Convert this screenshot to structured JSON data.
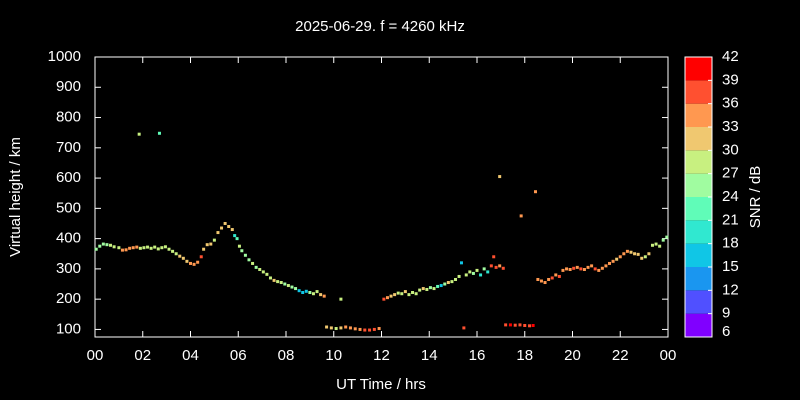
{
  "chart_data": {
    "type": "scatter",
    "title": "2025-06-29. f = 4260 kHz",
    "xlabel": "UT Time / hrs",
    "ylabel": "Virtual height / km",
    "colorbar_label": "SNR / dB",
    "xlim": [
      0,
      24
    ],
    "xticks": [
      {
        "value": 0,
        "label": "00"
      },
      {
        "value": 2,
        "label": "02"
      },
      {
        "value": 4,
        "label": "04"
      },
      {
        "value": 6,
        "label": "06"
      },
      {
        "value": 8,
        "label": "08"
      },
      10,
      12,
      14,
      16,
      18,
      20,
      22,
      {
        "value": 24,
        "label": "00"
      }
    ],
    "ylim": [
      75,
      1000
    ],
    "yticks": [
      100,
      200,
      300,
      400,
      500,
      600,
      700,
      800,
      900,
      1000
    ],
    "clim": [
      6,
      42
    ],
    "cticks": [
      6,
      9,
      12,
      15,
      18,
      21,
      24,
      27,
      30,
      33,
      36,
      39,
      42
    ],
    "colors": [
      "#8000ff",
      "#5050ff",
      "#1a96f0",
      "#10c6e6",
      "#30e8d0",
      "#60fcb8",
      "#a0fca0",
      "#c8f080",
      "#f0c870",
      "#ff9850",
      "#ff5030",
      "#ff0000"
    ],
    "x": [
      0.05,
      0.2,
      0.35,
      0.5,
      0.65,
      0.8,
      1.0,
      1.15,
      1.3,
      1.45,
      1.6,
      1.75,
      1.9,
      2.05,
      2.2,
      2.35,
      2.5,
      2.65,
      2.8,
      2.95,
      3.1,
      3.25,
      3.4,
      3.55,
      3.7,
      3.85,
      4.0,
      4.15,
      4.3,
      4.45,
      4.55,
      4.7,
      4.85,
      5.0,
      5.15,
      5.3,
      5.45,
      5.6,
      5.75,
      5.85,
      5.95,
      6.05,
      6.15,
      6.3,
      6.45,
      6.6,
      6.75,
      6.9,
      7.05,
      7.2,
      7.35,
      7.5,
      7.65,
      7.8,
      7.95,
      8.1,
      8.25,
      8.4,
      8.55,
      8.7,
      8.85,
      9.0,
      9.15,
      9.3,
      9.45,
      9.6,
      10.3,
      9.7,
      9.9,
      10.1,
      10.3,
      10.5,
      10.7,
      10.9,
      11.1,
      11.3,
      11.5,
      11.7,
      11.9,
      12.1,
      12.25,
      12.4,
      12.55,
      12.7,
      12.85,
      13.0,
      13.15,
      13.3,
      13.45,
      13.6,
      13.75,
      13.9,
      14.05,
      14.2,
      14.35,
      14.5,
      14.65,
      14.8,
      14.95,
      15.1,
      15.25,
      15.35,
      15.45,
      15.55,
      15.7,
      15.85,
      16.0,
      16.15,
      16.3,
      16.45,
      16.6,
      16.7,
      16.8,
      16.95,
      16.95,
      17.1,
      17.2,
      17.4,
      17.6,
      17.8,
      17.85,
      18.0,
      18.2,
      18.35,
      18.45,
      18.55,
      18.7,
      18.85,
      19.0,
      19.15,
      19.3,
      19.45,
      19.6,
      19.75,
      19.9,
      20.05,
      20.2,
      20.35,
      20.5,
      20.65,
      20.8,
      20.95,
      21.1,
      21.25,
      21.4,
      21.55,
      21.7,
      21.85,
      22.0,
      22.15,
      22.3,
      22.45,
      22.6,
      22.75,
      22.9,
      23.05,
      23.2,
      23.35,
      23.5,
      23.65,
      23.8,
      23.95,
      1.85,
      2.7
    ],
    "y": [
      365,
      375,
      382,
      380,
      378,
      373,
      370,
      362,
      363,
      368,
      370,
      372,
      368,
      370,
      372,
      368,
      372,
      366,
      370,
      373,
      365,
      358,
      350,
      342,
      335,
      325,
      318,
      315,
      322,
      340,
      365,
      380,
      382,
      395,
      420,
      435,
      450,
      440,
      430,
      410,
      400,
      375,
      360,
      345,
      330,
      318,
      305,
      298,
      290,
      282,
      270,
      262,
      258,
      255,
      250,
      245,
      240,
      235,
      228,
      222,
      226,
      222,
      218,
      225,
      215,
      210,
      200,
      108,
      105,
      103,
      105,
      108,
      105,
      102,
      100,
      98,
      98,
      100,
      103,
      200,
      205,
      210,
      215,
      220,
      218,
      225,
      215,
      222,
      218,
      230,
      235,
      232,
      238,
      235,
      242,
      245,
      250,
      255,
      258,
      265,
      275,
      320,
      105,
      280,
      290,
      285,
      295,
      280,
      300,
      290,
      310,
      340,
      305,
      310,
      605,
      302,
      115,
      115,
      114,
      115,
      475,
      113,
      112,
      113,
      555,
      265,
      260,
      255,
      265,
      270,
      280,
      275,
      295,
      300,
      298,
      302,
      305,
      300,
      298,
      305,
      310,
      300,
      295,
      302,
      310,
      318,
      325,
      332,
      340,
      350,
      358,
      355,
      350,
      348,
      335,
      340,
      350,
      378,
      382,
      375,
      395,
      405,
      745,
      748
    ],
    "snr": [
      25,
      25,
      25,
      24,
      27,
      27,
      27,
      33,
      34,
      34,
      34,
      33,
      27,
      27,
      27,
      27,
      27,
      27,
      27,
      27,
      27,
      28,
      28,
      30,
      30,
      31,
      34,
      35,
      35,
      36,
      30,
      31,
      30,
      29,
      30,
      31,
      32,
      30,
      31,
      19,
      21,
      28,
      26,
      25,
      26,
      27,
      26,
      27,
      28,
      27,
      28,
      30,
      29,
      27,
      26,
      27,
      26,
      25,
      17,
      15,
      17,
      24,
      27,
      29,
      32,
      33,
      28,
      30,
      32,
      29,
      30,
      33,
      34,
      33,
      35,
      36,
      37,
      37,
      35,
      36,
      33,
      31,
      30,
      27,
      29,
      30,
      28,
      27,
      29,
      28,
      30,
      27,
      26,
      28,
      22,
      15,
      26,
      30,
      27,
      28,
      29,
      15,
      37,
      28,
      27,
      25,
      27,
      20,
      26,
      19,
      36,
      38,
      37,
      35,
      30,
      37,
      38,
      39,
      38,
      37,
      35,
      38,
      37,
      39,
      35,
      33,
      34,
      33,
      34,
      36,
      35,
      37,
      34,
      35,
      33,
      36,
      35,
      37,
      34,
      33,
      35,
      36,
      35,
      34,
      35,
      34,
      33,
      32,
      33,
      34,
      33,
      32,
      31,
      30,
      30,
      29,
      30,
      28,
      29,
      27,
      26,
      25,
      27,
      21
    ]
  }
}
